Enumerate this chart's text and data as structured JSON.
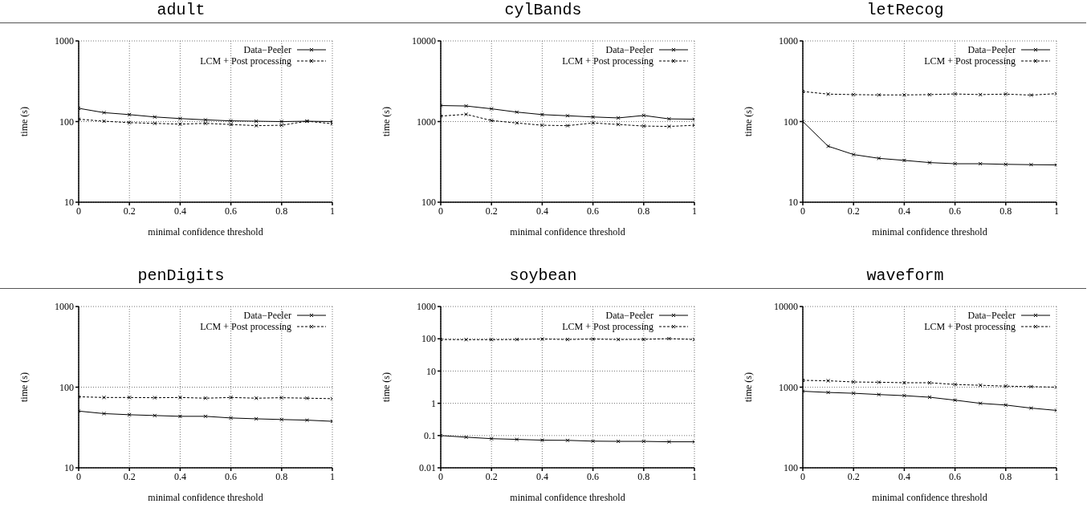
{
  "chart_data": [
    {
      "type": "line",
      "title": "adult",
      "xlabel": "minimal confidence threshold",
      "ylabel": "time (s)",
      "x": [
        0,
        0.1,
        0.2,
        0.3,
        0.4,
        0.5,
        0.6,
        0.7,
        0.8,
        0.9,
        1
      ],
      "series": [
        {
          "name": "Data−Peeler",
          "color": "#000000",
          "line_style": "solid",
          "values": [
            146,
            129,
            122,
            114,
            109,
            105,
            102,
            101,
            100,
            101,
            100
          ]
        },
        {
          "name": "LCM + Post processing",
          "color": "#000000",
          "line_style": "dashed",
          "values": [
            107,
            101,
            97,
            95,
            93,
            95,
            92,
            89,
            90,
            101,
            94
          ]
        }
      ],
      "xlim": [
        0,
        1
      ],
      "xticks": [
        0,
        0.2,
        0.4,
        0.6,
        0.8,
        1
      ],
      "ylim": [
        10,
        1000
      ],
      "yticks": [
        10,
        100,
        1000
      ],
      "log": "y",
      "grid": true,
      "legend": "top right",
      "marker": "cross"
    },
    {
      "type": "line",
      "title": "cylBands",
      "xlabel": "minimal confidence threshold",
      "ylabel": "time (s)",
      "x": [
        0,
        0.1,
        0.2,
        0.3,
        0.4,
        0.5,
        0.6,
        0.7,
        0.8,
        0.9,
        1
      ],
      "series": [
        {
          "name": "Data−Peeler",
          "color": "#000000",
          "line_style": "solid",
          "values": [
            1580,
            1560,
            1440,
            1310,
            1220,
            1180,
            1140,
            1110,
            1190,
            1080,
            1070
          ]
        },
        {
          "name": "LCM + Post processing",
          "color": "#000000",
          "line_style": "dashed",
          "values": [
            1170,
            1230,
            1030,
            960,
            900,
            890,
            960,
            920,
            880,
            870,
            900
          ]
        }
      ],
      "xlim": [
        0,
        1
      ],
      "xticks": [
        0,
        0.2,
        0.4,
        0.6,
        0.8,
        1
      ],
      "ylim": [
        100,
        10000
      ],
      "yticks": [
        100,
        1000,
        10000
      ],
      "log": "y",
      "grid": true,
      "legend": "top right",
      "marker": "cross"
    },
    {
      "type": "line",
      "title": "letRecog",
      "xlabel": "minimal confidence threshold",
      "ylabel": "time (s)",
      "x": [
        0,
        0.1,
        0.2,
        0.3,
        0.4,
        0.5,
        0.6,
        0.7,
        0.8,
        0.9,
        1
      ],
      "series": [
        {
          "name": "Data−Peeler",
          "color": "#000000",
          "line_style": "solid",
          "values": [
            100,
            49.5,
            39,
            35,
            33,
            31,
            30,
            30,
            29.5,
            29.2,
            29
          ]
        },
        {
          "name": "LCM + Post processing",
          "color": "#000000",
          "line_style": "dashed",
          "values": [
            236,
            219,
            216,
            214,
            214,
            216,
            220,
            216,
            219,
            213,
            222
          ]
        }
      ],
      "xlim": [
        0,
        1
      ],
      "xticks": [
        0,
        0.2,
        0.4,
        0.6,
        0.8,
        1
      ],
      "ylim": [
        10,
        1000
      ],
      "yticks": [
        10,
        100,
        1000
      ],
      "log": "y",
      "grid": true,
      "legend": "top right",
      "marker": "cross"
    },
    {
      "type": "line",
      "title": "penDigits",
      "xlabel": "minimal confidence threshold",
      "ylabel": "time (s)",
      "x": [
        0,
        0.1,
        0.2,
        0.3,
        0.4,
        0.5,
        0.6,
        0.7,
        0.8,
        0.9,
        1
      ],
      "series": [
        {
          "name": "Data−Peeler",
          "color": "#000000",
          "line_style": "solid",
          "values": [
            50.5,
            47,
            45.5,
            44.5,
            43.5,
            43.5,
            41.5,
            40.5,
            39.7,
            39,
            37.7
          ]
        },
        {
          "name": "LCM + Post processing",
          "color": "#000000",
          "line_style": "dashed",
          "values": [
            76,
            74.5,
            74.5,
            74,
            74.5,
            73,
            74.5,
            73,
            74,
            73,
            72
          ]
        }
      ],
      "xlim": [
        0,
        1
      ],
      "xticks": [
        0,
        0.2,
        0.4,
        0.6,
        0.8,
        1
      ],
      "ylim": [
        10,
        1000
      ],
      "yticks": [
        10,
        100,
        1000
      ],
      "log": "y",
      "grid": true,
      "legend": "top right",
      "marker": "cross"
    },
    {
      "type": "line",
      "title": "soybean",
      "xlabel": "minimal confidence threshold",
      "ylabel": "time (s)",
      "x": [
        0,
        0.1,
        0.2,
        0.3,
        0.4,
        0.5,
        0.6,
        0.7,
        0.8,
        0.9,
        1
      ],
      "series": [
        {
          "name": "Data−Peeler",
          "color": "#000000",
          "line_style": "solid",
          "values": [
            0.1,
            0.089,
            0.08,
            0.076,
            0.072,
            0.071,
            0.067,
            0.066,
            0.066,
            0.064,
            0.064
          ]
        },
        {
          "name": "LCM + Post processing",
          "color": "#000000",
          "line_style": "dashed",
          "values": [
            95,
            94,
            94,
            95,
            98,
            95,
            98,
            95,
            96,
            101,
            95
          ]
        }
      ],
      "xlim": [
        0,
        1
      ],
      "xticks": [
        0,
        0.2,
        0.4,
        0.6,
        0.8,
        1
      ],
      "ylim": [
        0.01,
        1000
      ],
      "yticks": [
        0.01,
        0.1,
        1,
        10,
        100,
        1000
      ],
      "log": "y",
      "grid": true,
      "legend": "top right",
      "marker": "cross"
    },
    {
      "type": "line",
      "title": "waveform",
      "xlabel": "minimal confidence threshold",
      "ylabel": "time (s)",
      "x": [
        0,
        0.1,
        0.2,
        0.3,
        0.4,
        0.5,
        0.6,
        0.7,
        0.8,
        0.9,
        1
      ],
      "series": [
        {
          "name": "Data−Peeler",
          "color": "#000000",
          "line_style": "solid",
          "values": [
            890,
            860,
            840,
            810,
            785,
            750,
            690,
            630,
            600,
            550,
            515
          ]
        },
        {
          "name": "LCM + Post processing",
          "color": "#000000",
          "line_style": "dashed",
          "values": [
            1215,
            1200,
            1160,
            1150,
            1135,
            1135,
            1080,
            1055,
            1030,
            1015,
            1000
          ]
        }
      ],
      "xlim": [
        0,
        1
      ],
      "xticks": [
        0,
        0.2,
        0.4,
        0.6,
        0.8,
        1
      ],
      "ylim": [
        100,
        10000
      ],
      "yticks": [
        100,
        1000,
        10000
      ],
      "log": "y",
      "grid": true,
      "legend": "top right",
      "marker": "cross"
    }
  ]
}
